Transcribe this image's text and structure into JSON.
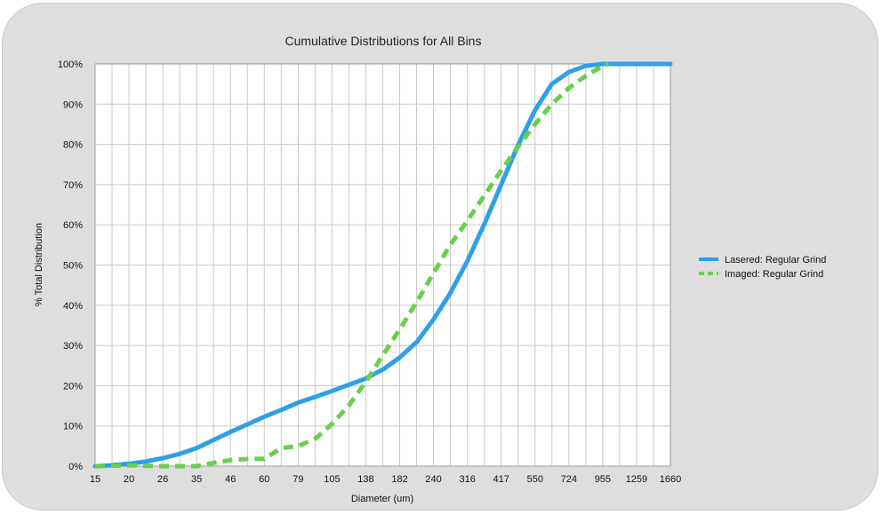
{
  "chart_data": {
    "type": "line",
    "title": "Cumulative Distributions for All Bins",
    "xlabel": "Diameter (um)",
    "ylabel": "% Total Distribution",
    "categories": [
      "15",
      "20",
      "26",
      "35",
      "46",
      "60",
      "79",
      "105",
      "138",
      "182",
      "240",
      "316",
      "417",
      "550",
      "724",
      "955",
      "1259",
      "1660"
    ],
    "ylim": [
      0,
      100
    ],
    "y_ticks": [
      "0%",
      "10%",
      "20%",
      "30%",
      "40%",
      "50%",
      "60%",
      "70%",
      "80%",
      "90%",
      "100%"
    ],
    "grid": true,
    "legend_position": "right",
    "series": [
      {
        "name": "Lasered: Regular Grind",
        "color": "#2f9fe8",
        "style": "solid",
        "x": [
          15,
          17,
          20,
          23,
          26,
          30,
          35,
          40,
          46,
          53,
          60,
          69,
          79,
          92,
          105,
          120,
          138,
          160,
          182,
          210,
          240,
          275,
          316,
          365,
          417,
          480,
          550,
          630,
          724,
          830,
          955,
          1100,
          1259,
          1450,
          1660
        ],
        "values": [
          0,
          0.2,
          0.6,
          1.2,
          2,
          3,
          4.5,
          6.5,
          8.5,
          10.5,
          12.3,
          14,
          15.8,
          17.3,
          18.7,
          20.2,
          21.8,
          24.2,
          27,
          31,
          36.5,
          43,
          51,
          60.5,
          70,
          80,
          88.5,
          95,
          98,
          99.5,
          100,
          100,
          100,
          100,
          100
        ]
      },
      {
        "name": "Imaged: Regular Grind",
        "color": "#6acf4a",
        "style": "dashed",
        "x": [
          15,
          20,
          26,
          35,
          40,
          46,
          53,
          60,
          69,
          79,
          92,
          105,
          120,
          138,
          160,
          182,
          210,
          240,
          275,
          316,
          365,
          417,
          480,
          550,
          630,
          724,
          830,
          955,
          1000
        ],
        "values": [
          0,
          0.2,
          0,
          0,
          0.8,
          1.5,
          1.8,
          1.8,
          4.5,
          5,
          7,
          10.5,
          15,
          21,
          28,
          34,
          41,
          48,
          55,
          61,
          67.5,
          73.5,
          79.5,
          85,
          90,
          94,
          97,
          99.5,
          100
        ]
      }
    ]
  }
}
